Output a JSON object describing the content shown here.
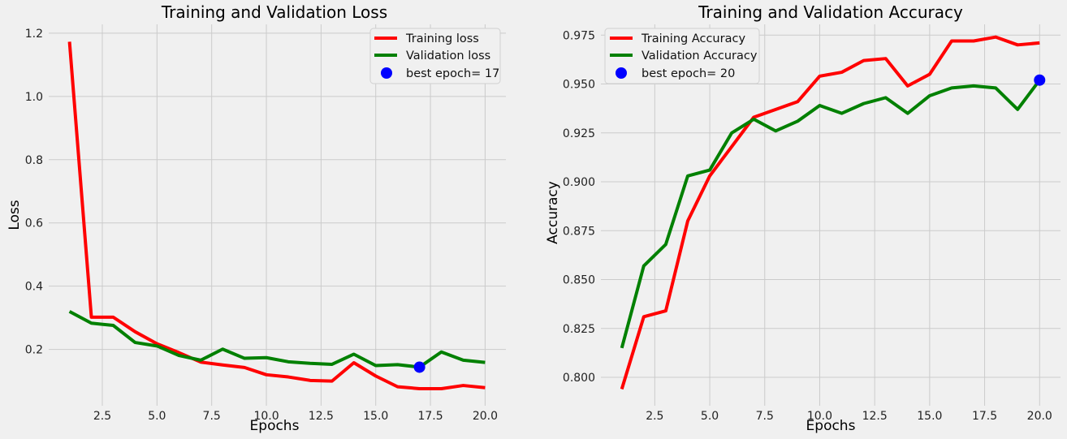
{
  "chart_data": [
    {
      "type": "line",
      "title": "Training and Validation Loss",
      "xlabel": "Epochs",
      "ylabel": "Loss",
      "xlim": [
        0.05,
        20.95
      ],
      "ylim": [
        0.022,
        1.228
      ],
      "xticks": [
        2.5,
        5.0,
        7.5,
        10.0,
        12.5,
        15.0,
        17.5,
        20.0
      ],
      "xtick_labels": [
        "2.5",
        "5.0",
        "7.5",
        "10.0",
        "12.5",
        "15.0",
        "17.5",
        "20.0"
      ],
      "yticks": [
        0.2,
        0.4,
        0.6,
        0.8,
        1.0,
        1.2
      ],
      "ytick_labels": [
        "0.2",
        "0.4",
        "0.6",
        "0.8",
        "1.0",
        "1.2"
      ],
      "grid": true,
      "legend_position": "top-right",
      "x": [
        1,
        2,
        3,
        4,
        5,
        6,
        7,
        8,
        9,
        10,
        11,
        12,
        13,
        14,
        15,
        16,
        17,
        18,
        19,
        20
      ],
      "series": [
        {
          "name": "Training loss",
          "color": "#ff0000",
          "values": [
            1.173,
            0.302,
            0.302,
            0.256,
            0.218,
            0.19,
            0.16,
            0.151,
            0.143,
            0.12,
            0.113,
            0.102,
            0.1,
            0.158,
            0.116,
            0.082,
            0.076,
            0.076,
            0.086,
            0.079
          ]
        },
        {
          "name": "Validation loss",
          "color": "#008000",
          "values": [
            0.32,
            0.283,
            0.276,
            0.222,
            0.211,
            0.181,
            0.166,
            0.201,
            0.172,
            0.174,
            0.161,
            0.156,
            0.153,
            0.185,
            0.149,
            0.152,
            0.144,
            0.192,
            0.166,
            0.159
          ]
        }
      ],
      "best_point": {
        "label": "best epoch= 17",
        "x": 17,
        "y": 0.144,
        "color": "#0000ff"
      }
    },
    {
      "type": "line",
      "title": "Training and Validation Accuracy",
      "xlabel": "Epochs",
      "ylabel": "Accuracy",
      "xlim": [
        0.05,
        20.95
      ],
      "ylim": [
        0.7855,
        0.9805
      ],
      "xticks": [
        2.5,
        5.0,
        7.5,
        10.0,
        12.5,
        15.0,
        17.5,
        20.0
      ],
      "xtick_labels": [
        "2.5",
        "5.0",
        "7.5",
        "10.0",
        "12.5",
        "15.0",
        "17.5",
        "20.0"
      ],
      "yticks": [
        0.8,
        0.825,
        0.85,
        0.875,
        0.9,
        0.925,
        0.95,
        0.975
      ],
      "ytick_labels": [
        "0.800",
        "0.825",
        "0.850",
        "0.875",
        "0.900",
        "0.925",
        "0.950",
        "0.975"
      ],
      "grid": true,
      "legend_position": "top-left",
      "x": [
        1,
        2,
        3,
        4,
        5,
        6,
        7,
        8,
        9,
        10,
        11,
        12,
        13,
        14,
        15,
        16,
        17,
        18,
        19,
        20
      ],
      "series": [
        {
          "name": "Training Accuracy",
          "color": "#ff0000",
          "values": [
            0.794,
            0.831,
            0.834,
            0.88,
            0.903,
            0.918,
            0.933,
            0.937,
            0.941,
            0.954,
            0.956,
            0.962,
            0.963,
            0.949,
            0.955,
            0.972,
            0.972,
            0.974,
            0.97,
            0.971
          ]
        },
        {
          "name": "Validation Accuracy",
          "color": "#008000",
          "values": [
            0.815,
            0.857,
            0.868,
            0.903,
            0.906,
            0.925,
            0.932,
            0.926,
            0.931,
            0.939,
            0.935,
            0.94,
            0.943,
            0.935,
            0.944,
            0.948,
            0.949,
            0.948,
            0.937,
            0.952
          ]
        }
      ],
      "best_point": {
        "label": "best epoch= 20",
        "x": 20,
        "y": 0.952,
        "color": "#0000ff"
      }
    }
  ]
}
